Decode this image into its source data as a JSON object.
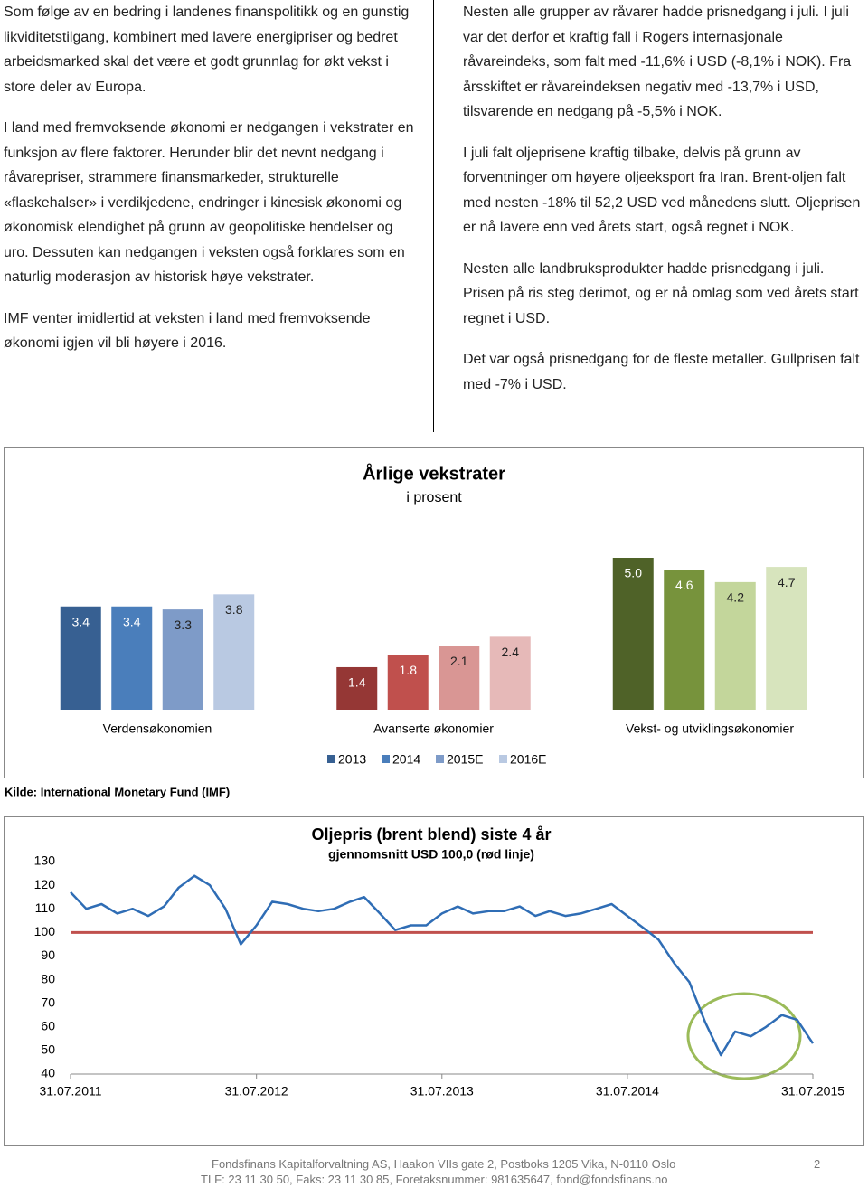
{
  "left_column": [
    "Som følge av en bedring i landenes finanspolitikk og en gunstig likviditetstilgang, kombinert med lavere energipriser og bedret arbeidsmarked skal det være et godt grunnlag for økt vekst i store deler av Europa.",
    "I land med fremvoksende økonomi er nedgangen i vekstrater en funksjon av flere faktorer. Herunder blir det nevnt nedgang i råvarepriser, strammere finansmarkeder, strukturelle «flaskehalser» i verdikjedene, endringer i kinesisk økonomi og økonomisk elendighet på grunn av geopolitiske hendelser og uro. Dessuten kan nedgangen i veksten også forklares som en naturlig moderasjon av historisk høye vekstrater.",
    "IMF venter imidlertid at veksten i land med fremvoksende økonomi igjen vil bli høyere i 2016."
  ],
  "right_column": [
    "Nesten alle grupper av råvarer hadde prisnedgang i juli. I juli var det derfor et kraftig fall i Rogers internasjonale råvareindeks, som falt med -11,6% i USD (-8,1% i NOK). Fra årsskiftet er råvareindeksen negativ med -13,7% i USD, tilsvarende en nedgang på -5,5% i NOK.",
    "I juli falt oljeprisene kraftig tilbake, delvis på grunn av forventninger om høyere oljeeksport fra Iran. Brent-oljen falt med nesten -18% til 52,2 USD ved månedens slutt. Oljeprisen er nå lavere enn ved årets start, også regnet i NOK.",
    "Nesten alle landbruksprodukter hadde prisnedgang i juli. Prisen på ris steg derimot, og er nå omlag som ved årets start regnet i USD.",
    "Det var også prisnedgang for de fleste metaller. Gullprisen falt med -7% i USD."
  ],
  "chart_data": [
    {
      "type": "bar",
      "title": "Årlige vekstrater",
      "subtitle": "i prosent",
      "categories": [
        "Verdensøkonomien",
        "Avanserte økonomier",
        "Vekst- og utviklingsøkonomier"
      ],
      "series": [
        {
          "name": "2013",
          "color": "#376092",
          "colors": [
            "#376092",
            "#953735",
            "#4f6228"
          ],
          "values": [
            3.4,
            1.4,
            5.0
          ],
          "value_labels": [
            "3.4",
            "1.4",
            "5.0"
          ]
        },
        {
          "name": "2014",
          "color": "#4a7ebb",
          "colors": [
            "#4a7ebb",
            "#c0504d",
            "#77933c"
          ],
          "values": [
            3.4,
            1.8,
            4.6
          ],
          "value_labels": [
            "3.4",
            "1.8",
            "4.6"
          ]
        },
        {
          "name": "2015E",
          "color": "#7e9bc8",
          "colors": [
            "#7e9bc8",
            "#d99694",
            "#c3d69b"
          ],
          "values": [
            3.3,
            2.1,
            4.2
          ],
          "value_labels": [
            "3.3",
            "2.1",
            "4.2"
          ]
        },
        {
          "name": "2016E",
          "color": "#b9c9e2",
          "colors": [
            "#b9c9e2",
            "#e6b9b8",
            "#d7e4bd"
          ],
          "values": [
            3.8,
            2.4,
            4.7
          ],
          "value_labels": [
            "3.8",
            "2.4",
            "4.7"
          ]
        }
      ],
      "legend": "bottom"
    },
    {
      "type": "line",
      "title": "Oljepris (brent blend) siste 4 år",
      "subtitle": "gjennomsnitt USD 100,0 (rød linje)",
      "x": [
        "2011-07-31",
        "2011-08-31",
        "2011-09-30",
        "2011-10-31",
        "2011-11-30",
        "2011-12-31",
        "2012-01-31",
        "2012-02-29",
        "2012-03-31",
        "2012-04-30",
        "2012-05-31",
        "2012-06-30",
        "2012-07-31",
        "2012-08-31",
        "2012-09-30",
        "2012-10-31",
        "2012-11-30",
        "2012-12-31",
        "2013-01-31",
        "2013-02-28",
        "2013-03-31",
        "2013-04-30",
        "2013-05-31",
        "2013-06-30",
        "2013-07-31",
        "2013-08-31",
        "2013-09-30",
        "2013-10-31",
        "2013-11-30",
        "2013-12-31",
        "2014-01-31",
        "2014-02-28",
        "2014-03-31",
        "2014-04-30",
        "2014-05-31",
        "2014-06-30",
        "2014-07-31",
        "2014-08-31",
        "2014-09-30",
        "2014-10-31",
        "2014-11-30",
        "2014-12-31",
        "2015-01-31",
        "2015-02-28",
        "2015-03-31",
        "2015-04-30",
        "2015-05-31",
        "2015-06-30",
        "2015-07-31"
      ],
      "series": [
        {
          "name": "Brent",
          "color": "#2f6db5",
          "values": [
            117,
            110,
            112,
            108,
            110,
            107,
            111,
            119,
            124,
            120,
            110,
            95,
            103,
            113,
            112,
            110,
            109,
            110,
            113,
            115,
            108,
            101,
            103,
            103,
            108,
            111,
            108,
            109,
            109,
            111,
            107,
            109,
            107,
            108,
            110,
            112,
            107,
            102,
            97,
            87,
            79,
            62,
            48,
            58,
            56,
            60,
            65,
            63,
            53
          ]
        }
      ],
      "reference_line": {
        "value": 100,
        "color": "#c0504d"
      },
      "ylim": [
        40,
        130
      ],
      "yticks": [
        40,
        50,
        60,
        70,
        80,
        90,
        100,
        110,
        120,
        130
      ],
      "xlim": [
        "2011-07-31",
        "2015-07-31"
      ],
      "xticks": [
        {
          "value": "2011-07-31",
          "label": "31.07.2011"
        },
        {
          "value": "2012-07-31",
          "label": "31.07.2012"
        },
        {
          "value": "2013-07-31",
          "label": "31.07.2013"
        },
        {
          "value": "2014-07-31",
          "label": "31.07.2014"
        },
        {
          "value": "2015-07-31",
          "label": "31.07.2015"
        }
      ]
    }
  ],
  "source": "Kilde: International Monetary Fund (IMF)",
  "footer": {
    "lines": [
      "Fondsfinans Kapitalforvaltning AS, Haakon VIIs gate 2, Postboks 1205 Vika, N-0110 Oslo",
      "TLF: 23 11 30 50, Faks: 23 11 30 85, Foretaksnummer: 981635647, fond@fondsfinans.no"
    ],
    "page_number": "2"
  }
}
